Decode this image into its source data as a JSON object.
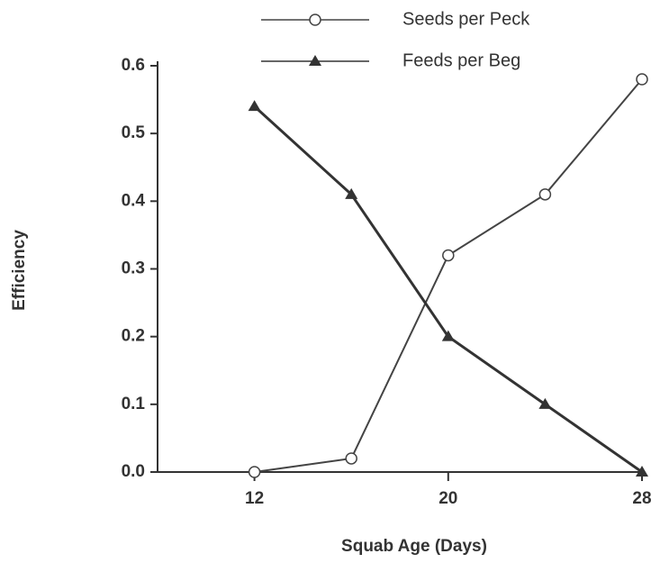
{
  "chart_data": {
    "type": "line",
    "x_label": "Squab Age (Days)",
    "y_label": "Efficiency",
    "x": [
      12,
      16,
      20,
      24,
      28
    ],
    "series": [
      {
        "name": "Seeds per Peck",
        "color": "#444444",
        "marker": "circle",
        "values": [
          0.0,
          0.02,
          0.32,
          0.41,
          0.58
        ]
      },
      {
        "name": "Feeds per Beg",
        "color": "#333333",
        "marker": "triangle",
        "values": [
          0.54,
          0.41,
          0.2,
          0.1,
          0.0
        ]
      }
    ],
    "xlim": [
      8,
      28
    ],
    "xticks": [
      12,
      20,
      28
    ],
    "ylim": [
      0,
      0.6
    ],
    "yticks": [
      {
        "value": 0,
        "label": "0.0"
      },
      0.1,
      0.2,
      0.3,
      0.4,
      0.5,
      0.6
    ],
    "grid": false,
    "legend": "top"
  }
}
